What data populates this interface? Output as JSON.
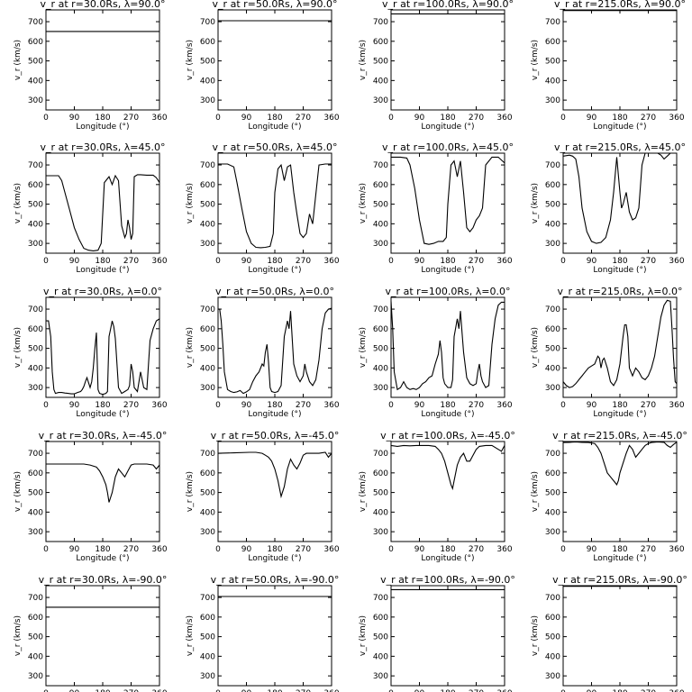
{
  "figure": {
    "ylabel": "v_r (km/s)",
    "xlabel": "Longitude (°)",
    "xticks": [
      0,
      90,
      180,
      270,
      360
    ],
    "yticks": [
      300,
      400,
      500,
      600,
      700
    ],
    "xlim": [
      0,
      360
    ],
    "ylim": [
      250,
      760
    ],
    "line_color": "#000000"
  },
  "chart_data": [
    {
      "type": "line",
      "title": "v_r at r=30.0Rs, λ=90.0°",
      "x": [
        0,
        360
      ],
      "y": [
        650,
        650
      ]
    },
    {
      "type": "line",
      "title": "v_r at r=50.0Rs, λ=90.0°",
      "x": [
        0,
        360
      ],
      "y": [
        705,
        705
      ]
    },
    {
      "type": "line",
      "title": "v_r at r=100.0Rs, λ=90.0°",
      "x": [
        0,
        360
      ],
      "y": [
        740,
        740
      ]
    },
    {
      "type": "line",
      "title": "v_r at r=215.0Rs, λ=90.0°",
      "x": [
        0,
        360
      ],
      "y": [
        757,
        757
      ]
    },
    {
      "type": "line",
      "title": "v_r at r=30.0Rs, λ=45.0°",
      "x": [
        0,
        40,
        50,
        60,
        75,
        90,
        105,
        120,
        135,
        150,
        165,
        175,
        185,
        200,
        210,
        220,
        230,
        240,
        250,
        255,
        260,
        265,
        270,
        275,
        280,
        290,
        300,
        320,
        340,
        350,
        360
      ],
      "y": [
        645,
        645,
        620,
        560,
        470,
        380,
        320,
        275,
        265,
        262,
        265,
        300,
        610,
        640,
        600,
        645,
        620,
        390,
        330,
        350,
        420,
        380,
        320,
        350,
        640,
        650,
        650,
        648,
        648,
        635,
        610
      ]
    },
    {
      "type": "line",
      "title": "v_r at r=50.0Rs, λ=45.0°",
      "x": [
        0,
        30,
        50,
        60,
        75,
        90,
        105,
        120,
        135,
        150,
        165,
        175,
        180,
        190,
        200,
        210,
        220,
        230,
        240,
        250,
        260,
        270,
        280,
        290,
        300,
        320,
        340,
        360
      ],
      "y": [
        705,
        705,
        690,
        610,
        480,
        360,
        300,
        280,
        278,
        280,
        285,
        350,
        560,
        680,
        700,
        620,
        690,
        700,
        560,
        450,
        350,
        330,
        350,
        450,
        400,
        700,
        705,
        705
      ]
    },
    {
      "type": "line",
      "title": "v_r at r=100.0Rs, λ=45.0°",
      "x": [
        0,
        30,
        50,
        60,
        75,
        90,
        105,
        120,
        135,
        150,
        165,
        175,
        180,
        190,
        200,
        210,
        220,
        230,
        240,
        250,
        260,
        270,
        280,
        290,
        300,
        320,
        340,
        360
      ],
      "y": [
        740,
        740,
        735,
        700,
        580,
        420,
        300,
        295,
        300,
        310,
        310,
        330,
        500,
        700,
        720,
        640,
        720,
        560,
        380,
        360,
        380,
        420,
        440,
        480,
        700,
        740,
        740,
        710
      ]
    },
    {
      "type": "line",
      "title": "v_r at r=215.0Rs, λ=45.0°",
      "x": [
        0,
        20,
        30,
        40,
        50,
        60,
        75,
        90,
        105,
        120,
        135,
        150,
        160,
        170,
        180,
        185,
        190,
        200,
        210,
        220,
        230,
        240,
        250,
        260,
        270,
        280,
        290,
        300,
        310,
        320,
        330,
        340,
        350,
        360
      ],
      "y": [
        745,
        750,
        745,
        730,
        640,
        480,
        360,
        310,
        300,
        305,
        330,
        420,
        560,
        740,
        560,
        480,
        500,
        560,
        460,
        420,
        430,
        480,
        700,
        760,
        760,
        760,
        760,
        760,
        750,
        730,
        745,
        760,
        760,
        760
      ]
    },
    {
      "type": "line",
      "title": "v_r at r=30.0Rs, λ=0.0°",
      "x": [
        0,
        8,
        15,
        20,
        25,
        30,
        40,
        50,
        60,
        70,
        80,
        90,
        100,
        110,
        115,
        120,
        125,
        130,
        140,
        145,
        150,
        155,
        160,
        165,
        170,
        180,
        190,
        195,
        200,
        205,
        210,
        215,
        220,
        230,
        240,
        250,
        260,
        265,
        270,
        275,
        280,
        290,
        300,
        310,
        320,
        330,
        340,
        350,
        360
      ],
      "y": [
        640,
        640,
        560,
        380,
        290,
        270,
        275,
        275,
        272,
        270,
        268,
        268,
        275,
        280,
        290,
        305,
        330,
        350,
        300,
        330,
        400,
        500,
        580,
        290,
        270,
        265,
        270,
        280,
        560,
        600,
        640,
        610,
        550,
        300,
        270,
        280,
        290,
        310,
        420,
        380,
        300,
        280,
        380,
        300,
        290,
        540,
        600,
        640,
        650
      ]
    },
    {
      "type": "line",
      "title": "v_r at r=50.0Rs, λ=0.0°",
      "x": [
        0,
        5,
        10,
        15,
        20,
        30,
        40,
        50,
        60,
        70,
        80,
        90,
        100,
        110,
        120,
        130,
        140,
        145,
        150,
        155,
        160,
        165,
        170,
        180,
        190,
        200,
        210,
        220,
        225,
        230,
        235,
        240,
        250,
        260,
        270,
        275,
        280,
        290,
        300,
        310,
        320,
        330,
        340,
        350,
        360
      ],
      "y": [
        700,
        700,
        640,
        520,
        380,
        290,
        280,
        275,
        278,
        285,
        270,
        278,
        290,
        330,
        360,
        380,
        420,
        410,
        480,
        520,
        430,
        300,
        280,
        275,
        280,
        310,
        560,
        640,
        600,
        690,
        550,
        420,
        360,
        330,
        360,
        420,
        380,
        330,
        310,
        340,
        440,
        600,
        680,
        700,
        705
      ]
    },
    {
      "type": "line",
      "title": "v_r at r=100.0Rs, λ=0.0°",
      "x": [
        0,
        5,
        10,
        20,
        30,
        40,
        50,
        60,
        70,
        80,
        90,
        100,
        110,
        120,
        130,
        140,
        150,
        155,
        160,
        165,
        170,
        180,
        190,
        195,
        200,
        210,
        215,
        220,
        225,
        230,
        240,
        250,
        260,
        270,
        275,
        280,
        285,
        290,
        300,
        310,
        320,
        330,
        340,
        350,
        360
      ],
      "y": [
        740,
        600,
        380,
        290,
        300,
        330,
        300,
        290,
        295,
        290,
        300,
        320,
        330,
        350,
        360,
        420,
        470,
        540,
        480,
        350,
        320,
        300,
        300,
        340,
        560,
        650,
        600,
        690,
        580,
        480,
        350,
        320,
        310,
        320,
        380,
        420,
        360,
        330,
        300,
        310,
        520,
        650,
        720,
        735,
        735
      ]
    },
    {
      "type": "line",
      "title": "v_r at r=215.0Rs, λ=0.0°",
      "x": [
        0,
        10,
        20,
        30,
        40,
        50,
        60,
        70,
        80,
        90,
        100,
        110,
        115,
        120,
        125,
        130,
        140,
        150,
        160,
        170,
        180,
        190,
        195,
        200,
        205,
        210,
        220,
        230,
        240,
        250,
        260,
        270,
        280,
        290,
        300,
        310,
        320,
        330,
        340,
        345,
        350,
        355,
        360
      ],
      "y": [
        330,
        310,
        300,
        305,
        320,
        340,
        360,
        380,
        400,
        410,
        420,
        460,
        450,
        400,
        440,
        450,
        400,
        330,
        310,
        340,
        420,
        560,
        620,
        620,
        560,
        400,
        360,
        400,
        380,
        350,
        340,
        360,
        400,
        460,
        560,
        660,
        720,
        745,
        740,
        600,
        450,
        330,
        320
      ]
    },
    {
      "type": "line",
      "title": "v_r at r=30.0Rs, λ=-45.0°",
      "x": [
        0,
        50,
        100,
        120,
        140,
        160,
        170,
        180,
        190,
        195,
        200,
        210,
        220,
        230,
        240,
        250,
        260,
        270,
        280,
        300,
        320,
        340,
        350,
        360
      ],
      "y": [
        645,
        645,
        645,
        645,
        640,
        630,
        610,
        580,
        540,
        500,
        450,
        500,
        580,
        620,
        600,
        580,
        610,
        640,
        645,
        645,
        645,
        640,
        620,
        640
      ]
    },
    {
      "type": "line",
      "title": "v_r at r=50.0Rs, λ=-45.0°",
      "x": [
        0,
        50,
        100,
        120,
        140,
        150,
        160,
        170,
        180,
        190,
        200,
        210,
        220,
        230,
        240,
        250,
        260,
        270,
        280,
        300,
        320,
        340,
        350,
        360
      ],
      "y": [
        700,
        702,
        705,
        705,
        700,
        690,
        680,
        660,
        620,
        560,
        480,
        530,
        620,
        670,
        640,
        620,
        650,
        690,
        700,
        700,
        700,
        705,
        680,
        700
      ]
    },
    {
      "type": "line",
      "title": "v_r at r=100.0Rs, λ=-45.0°",
      "x": [
        0,
        20,
        40,
        60,
        80,
        100,
        120,
        140,
        150,
        160,
        170,
        180,
        190,
        195,
        200,
        210,
        220,
        230,
        240,
        250,
        260,
        270,
        280,
        300,
        320,
        340,
        350,
        360
      ],
      "y": [
        740,
        735,
        740,
        738,
        740,
        740,
        740,
        735,
        720,
        700,
        660,
        600,
        540,
        520,
        560,
        640,
        680,
        700,
        660,
        660,
        690,
        720,
        735,
        740,
        740,
        720,
        710,
        740
      ]
    },
    {
      "type": "line",
      "title": "v_r at r=215.0Rs, λ=-45.0°",
      "x": [
        0,
        20,
        40,
        60,
        80,
        100,
        110,
        120,
        130,
        140,
        150,
        160,
        170,
        175,
        180,
        190,
        200,
        210,
        220,
        230,
        240,
        250,
        260,
        270,
        280,
        300,
        320,
        330,
        340,
        350,
        360
      ],
      "y": [
        755,
        756,
        758,
        756,
        755,
        750,
        730,
        700,
        650,
        600,
        580,
        560,
        540,
        560,
        600,
        650,
        700,
        740,
        720,
        680,
        700,
        720,
        740,
        750,
        755,
        758,
        756,
        740,
        730,
        745,
        757
      ]
    },
    {
      "type": "line",
      "title": "v_r at r=30.0Rs, λ=-90.0°",
      "x": [
        0,
        360
      ],
      "y": [
        650,
        650
      ]
    },
    {
      "type": "line",
      "title": "v_r at r=50.0Rs, λ=-90.0°",
      "x": [
        0,
        360
      ],
      "y": [
        705,
        705
      ]
    },
    {
      "type": "line",
      "title": "v_r at r=100.0Rs, λ=-90.0°",
      "x": [
        0,
        360
      ],
      "y": [
        740,
        740
      ]
    },
    {
      "type": "line",
      "title": "v_r at r=215.0Rs, λ=-90.0°",
      "x": [
        0,
        360
      ],
      "y": [
        757,
        757
      ]
    }
  ]
}
